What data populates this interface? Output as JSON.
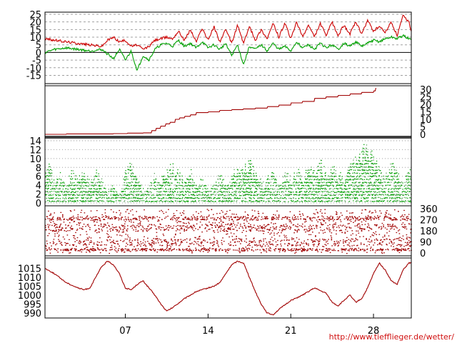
{
  "footer_url": "http://www.tiefflieger.de/wetter/",
  "x_axis": {
    "range_days": [
      0.2,
      31.2
    ],
    "tick_days": [
      7,
      14,
      21,
      28
    ],
    "tick_labels": [
      "07",
      "14",
      "21",
      "28"
    ]
  },
  "colors": {
    "red": "#cc0000",
    "green": "#00a000",
    "darkred": "#a00000",
    "grid": "#a0a0a0"
  },
  "chart_data": [
    {
      "id": "temperature",
      "type": "line",
      "ylim": [
        -19,
        25
      ],
      "y_ticks": [
        25,
        20,
        15,
        10,
        5,
        0,
        -5,
        -10,
        -15
      ],
      "y_tick_labels": [
        "25",
        "20",
        "15",
        "10",
        "5",
        "0",
        "-5",
        "-10",
        "-15"
      ],
      "axis_side": "left",
      "series": [
        {
          "color": "red",
          "x": [
            0.2,
            1,
            2,
            3,
            4,
            5,
            5.5,
            6,
            6.5,
            7,
            7.5,
            8,
            8.5,
            9,
            9.5,
            10,
            10.5,
            11,
            11.5,
            12,
            12.5,
            13,
            13.5,
            14,
            14.5,
            15,
            15.5,
            16,
            16.5,
            17,
            17.5,
            18,
            18.5,
            19,
            19.5,
            20,
            20.5,
            21,
            21.5,
            22,
            22.5,
            23,
            23.5,
            24,
            24.5,
            25,
            25.5,
            26,
            26.5,
            27,
            27.5,
            28,
            28.5,
            29,
            29.5,
            30,
            30.5,
            31,
            31.2
          ],
          "y": [
            9,
            8,
            7,
            6,
            5,
            4,
            8,
            10,
            7,
            8,
            4,
            5,
            2,
            4,
            8,
            9,
            10,
            9,
            14,
            8,
            15,
            7,
            16,
            8,
            17,
            7,
            15,
            6,
            18,
            6,
            17,
            8,
            15,
            9,
            19,
            10,
            19,
            9,
            20,
            10,
            18,
            10,
            19,
            11,
            20,
            11,
            18,
            12,
            20,
            12,
            21,
            14,
            17,
            13,
            20,
            11,
            24,
            20,
            14
          ]
        },
        {
          "color": "green",
          "x": [
            0.2,
            1,
            2,
            3,
            4,
            5,
            5.5,
            6,
            6.5,
            7,
            7.5,
            8,
            8.5,
            9,
            9.5,
            10,
            10.5,
            11,
            11.5,
            12,
            12.5,
            13,
            13.5,
            14,
            14.5,
            15,
            15.5,
            16,
            16.5,
            17,
            17.5,
            18,
            18.5,
            19,
            19.5,
            20,
            20.5,
            21,
            21.5,
            22,
            22.5,
            23,
            23.5,
            24,
            24.5,
            25,
            25.5,
            26,
            26.5,
            27,
            27.5,
            28,
            28.5,
            29,
            29.5,
            30,
            30.5,
            31,
            31.2
          ],
          "y": [
            0,
            2,
            3,
            2,
            1,
            2,
            -1,
            -4,
            2,
            -5,
            1,
            -12,
            -2,
            -5,
            2,
            5,
            6,
            4,
            8,
            4,
            6,
            3,
            7,
            3,
            5,
            2,
            6,
            -2,
            5,
            -8,
            4,
            2,
            5,
            1,
            6,
            2,
            4,
            1,
            7,
            3,
            5,
            2,
            6,
            3,
            5,
            2,
            6,
            4,
            7,
            4,
            6,
            8,
            7,
            9,
            10,
            9,
            11,
            9,
            8
          ]
        }
      ]
    },
    {
      "id": "precipitation",
      "type": "line",
      "ylim": [
        0,
        31
      ],
      "y_ticks": [
        30,
        25,
        20,
        15,
        10,
        5,
        0
      ],
      "y_tick_labels": [
        "30",
        "25",
        "20",
        "15",
        "10",
        "5",
        "0"
      ],
      "axis_side": "right",
      "series": [
        {
          "color": "darkred",
          "x": [
            0.2,
            2,
            4,
            6,
            7.2,
            8.5,
            9.2,
            9.6,
            10,
            10.4,
            10.8,
            11.2,
            11.6,
            12,
            12.5,
            13,
            14,
            15,
            16,
            17,
            18,
            19,
            20,
            21,
            22,
            23,
            24,
            25,
            26,
            27,
            28,
            28.2
          ],
          "y": [
            0,
            0.3,
            0.3,
            0.5,
            0.8,
            1,
            2.5,
            4,
            5.5,
            7,
            8,
            10,
            11,
            12,
            13,
            14.5,
            15,
            16,
            16.5,
            17,
            17.5,
            18.5,
            19.5,
            21,
            22,
            24,
            25,
            26,
            27,
            28,
            29,
            31
          ]
        }
      ]
    },
    {
      "id": "wind",
      "type": "scatter",
      "ylim": [
        0,
        14
      ],
      "y_ticks": [
        14,
        12,
        10,
        8,
        6,
        4,
        2,
        0
      ],
      "y_tick_labels": [
        "14",
        "12",
        "10",
        "8",
        "6",
        "4",
        "2",
        "0"
      ],
      "axis_side": "left",
      "envelope_x": [
        0.2,
        0.5,
        1,
        1.5,
        2,
        2.5,
        3,
        3.5,
        4,
        4.5,
        5,
        5.5,
        6,
        6.5,
        7,
        7.5,
        8,
        8.5,
        9,
        9.5,
        10,
        10.5,
        11,
        11.5,
        12,
        12.5,
        13,
        13.5,
        14,
        14.5,
        15,
        15.5,
        16,
        16.5,
        17,
        17.5,
        18,
        18.5,
        19,
        19.5,
        20,
        20.5,
        21,
        21.5,
        22,
        22.5,
        23,
        23.5,
        24,
        24.5,
        25,
        25.5,
        26,
        26.5,
        27,
        27.5,
        28,
        28.5,
        29,
        29.5,
        30,
        30.5,
        31,
        31.2
      ],
      "envelope_y": [
        6,
        9,
        5,
        7,
        4,
        8,
        6,
        7,
        5,
        8,
        6,
        3,
        4,
        2,
        8,
        9,
        5,
        3,
        4,
        7,
        6,
        8,
        9,
        7,
        5,
        8,
        4,
        6,
        3,
        5,
        7,
        4,
        6,
        9,
        8,
        10,
        7,
        5,
        6,
        8,
        4,
        7,
        6,
        8,
        5,
        9,
        7,
        10,
        6,
        8,
        7,
        5,
        9,
        11,
        12,
        13,
        11,
        8,
        6,
        9,
        7,
        5,
        8,
        6
      ]
    },
    {
      "id": "wind_direction",
      "type": "scatter",
      "ylim": [
        0,
        360
      ],
      "y_ticks": [
        360,
        270,
        180,
        90,
        0
      ],
      "y_tick_labels": [
        "360",
        "270",
        "180",
        "90",
        "0"
      ],
      "axis_side": "right"
    },
    {
      "id": "pressure",
      "type": "line",
      "ylim": [
        988,
        1020
      ],
      "y_ticks": [
        1015,
        1010,
        1005,
        1000,
        995,
        990
      ],
      "y_tick_labels": [
        "1015",
        "1010",
        "1005",
        "1000",
        "995",
        "990"
      ],
      "axis_side": "left",
      "series": [
        {
          "color": "darkred",
          "x": [
            0.2,
            1,
            2,
            3,
            3.5,
            4,
            4.5,
            5,
            5.5,
            6,
            6.5,
            7,
            7.5,
            8,
            8.5,
            9,
            9.5,
            10,
            10.5,
            11,
            12,
            13,
            14,
            14.5,
            15,
            15.5,
            16,
            16.5,
            17,
            17.5,
            18,
            18.5,
            19,
            19.5,
            20,
            21,
            22,
            23,
            24,
            24.5,
            25,
            25.5,
            26,
            26.5,
            27,
            27.5,
            28,
            28.5,
            29,
            29.5,
            30,
            30.5,
            31,
            31.2
          ],
          "y": [
            1015,
            1012,
            1007,
            1004,
            1003,
            1004,
            1010,
            1016,
            1019,
            1017,
            1012,
            1004,
            1003,
            1006,
            1008,
            1004,
            1000,
            995,
            991,
            993,
            998,
            1002,
            1004,
            1005,
            1007,
            1012,
            1017,
            1019,
            1018,
            1010,
            1002,
            995,
            990,
            989,
            992,
            997,
            1000,
            1004,
            1001,
            996,
            994,
            997,
            1000,
            996,
            998,
            1004,
            1012,
            1018,
            1014,
            1008,
            1006,
            1014,
            1018,
            1018
          ]
        }
      ]
    }
  ]
}
